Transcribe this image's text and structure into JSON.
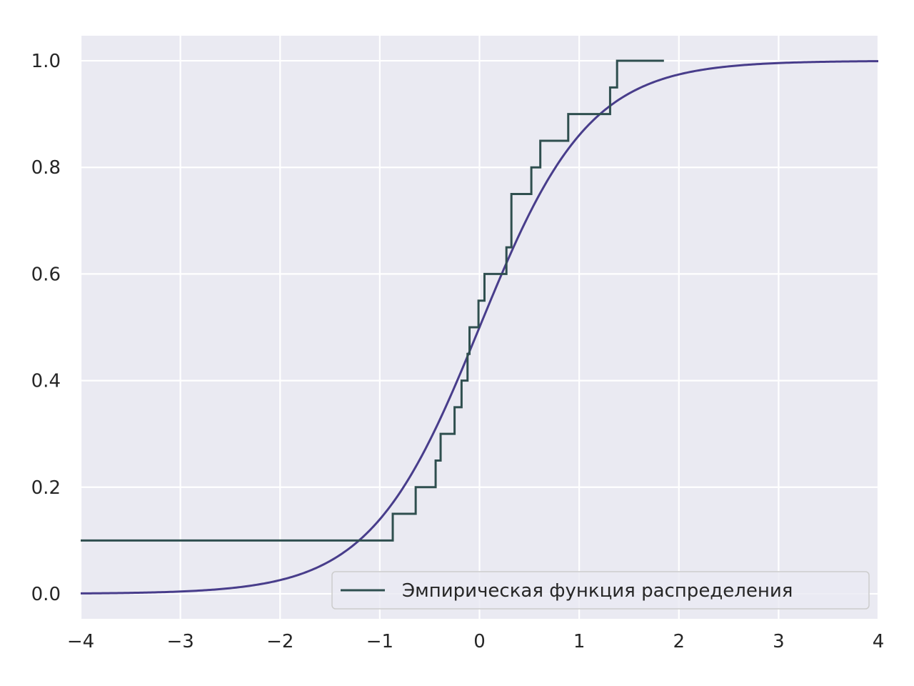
{
  "chart_data": {
    "type": "line",
    "title": "",
    "xlabel": "",
    "ylabel": "",
    "xlim": [
      -4,
      4
    ],
    "ylim": [
      -0.047,
      1.047
    ],
    "x_ticks": [
      -4,
      -3,
      -2,
      -1,
      0,
      1,
      2,
      3,
      4
    ],
    "x_tick_labels": [
      "−4",
      "−3",
      "−2",
      "−1",
      "0",
      "1",
      "2",
      "3",
      "4"
    ],
    "y_ticks": [
      0.0,
      0.2,
      0.4,
      0.6,
      0.8,
      1.0
    ],
    "y_tick_labels": [
      "0.0",
      "0.2",
      "0.4",
      "0.6",
      "0.8",
      "1.0"
    ],
    "grid": true,
    "legend_position": "lower-right",
    "colors": {
      "background": "#eaeaf2",
      "grid": "#ffffff",
      "ecdf": "#2f4f4f",
      "cdf": "#483d8b",
      "text": "#262626"
    },
    "series": [
      {
        "name": "Эмпирическая функция распределения",
        "kind": "step",
        "x": [
          -4.0,
          -0.87,
          -0.64,
          -0.44,
          -0.39,
          -0.35,
          -0.25,
          -0.18,
          -0.12,
          -0.1,
          -0.01,
          0.05,
          0.27,
          0.32,
          0.52,
          0.61,
          0.89,
          1.31,
          1.38,
          1.85
        ],
        "y": [
          0.1,
          0.15,
          0.2,
          0.25,
          0.3,
          0.3,
          0.35,
          0.4,
          0.45,
          0.5,
          0.55,
          0.6,
          0.65,
          0.75,
          0.8,
          0.85,
          0.9,
          0.95,
          1.0,
          1.0
        ]
      },
      {
        "name": "",
        "kind": "line",
        "function": "logistic",
        "scale": 0.55,
        "x_range": [
          -4,
          4
        ]
      }
    ]
  }
}
